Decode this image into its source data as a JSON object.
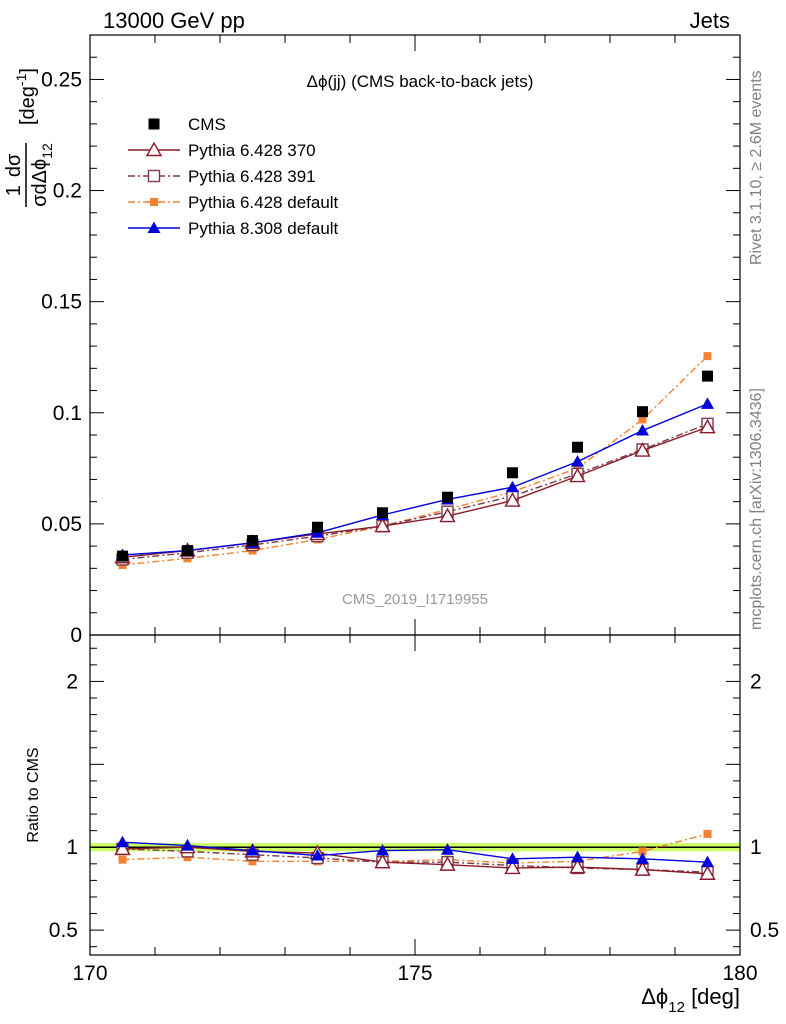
{
  "header": {
    "left": "13000 GeV pp",
    "right": "Jets"
  },
  "side_labels": {
    "rivet": "Rivet 3.1.10, ≥ 2.6M events",
    "mcplots": "mcplots.cern.ch [arXiv:1306.3436]"
  },
  "watermark": "CMS_2019_I1719955",
  "colors": {
    "cms": "#000000",
    "p370": "#8b1a2b",
    "p391": "#7a3a4a",
    "p6def": "#f58232",
    "p8def": "#0000dd",
    "band": "#ccff66"
  },
  "chart_data": [
    {
      "type": "scatter",
      "title": "Δϕ(jj) (CMS back-to-back jets)",
      "ylabel": "1/σ dσ/dΔϕ_12 [deg^-1]",
      "xlim": [
        170,
        180
      ],
      "ylim": [
        0,
        0.27
      ],
      "yticks": [
        "0",
        "0.05",
        "0.1",
        "0.15",
        "0.2",
        "0.25"
      ],
      "x": [
        170.5,
        171.5,
        172.5,
        173.5,
        174.5,
        175.5,
        176.5,
        177.5,
        178.5,
        179.5
      ],
      "series": [
        {
          "key": "cms",
          "name": "CMS",
          "marker": "square",
          "line": "none",
          "values": [
            0.0355,
            0.038,
            0.0425,
            0.0485,
            0.055,
            0.062,
            0.073,
            0.0845,
            0.1005,
            0.1165
          ]
        },
        {
          "key": "p370",
          "name": "Pythia 6.428 370",
          "marker": "triangle-open",
          "line": "solid",
          "values": [
            0.035,
            0.038,
            0.0415,
            0.0455,
            0.049,
            0.0535,
            0.0605,
            0.0715,
            0.083,
            0.0935
          ]
        },
        {
          "key": "p391",
          "name": "Pythia 6.428 391",
          "marker": "square-open",
          "line": "dashdot",
          "values": [
            0.034,
            0.037,
            0.0405,
            0.0445,
            0.049,
            0.0555,
            0.0625,
            0.0725,
            0.0835,
            0.095
          ]
        },
        {
          "key": "p6def",
          "name": "Pythia 6.428 default",
          "marker": "square-small",
          "line": "dashdot",
          "values": [
            0.0315,
            0.0345,
            0.038,
            0.043,
            0.049,
            0.0565,
            0.0645,
            0.075,
            0.097,
            0.1255
          ]
        },
        {
          "key": "p8def",
          "name": "Pythia 8.308 default",
          "marker": "triangle",
          "line": "solid",
          "values": [
            0.036,
            0.038,
            0.0415,
            0.046,
            0.054,
            0.061,
            0.0665,
            0.078,
            0.092,
            0.104
          ]
        }
      ]
    },
    {
      "type": "line",
      "ylabel": "Ratio to CMS",
      "xlabel": "Δϕ_12 [deg]",
      "xlim": [
        170,
        180
      ],
      "xticks": [
        "170",
        "175",
        "180"
      ],
      "ylim": [
        0.35,
        2.28
      ],
      "yticks": [
        "0.5",
        "1",
        "2"
      ],
      "band": [
        0.975,
        1.025
      ],
      "x": [
        170.5,
        171.5,
        172.5,
        173.5,
        174.5,
        175.5,
        176.5,
        177.5,
        178.5,
        179.5
      ],
      "series": [
        {
          "key": "p370",
          "values": [
            0.99,
            1.0,
            0.975,
            0.965,
            0.91,
            0.895,
            0.875,
            0.88,
            0.865,
            0.84
          ]
        },
        {
          "key": "p391",
          "values": [
            0.99,
            0.975,
            0.955,
            0.935,
            0.91,
            0.91,
            0.89,
            0.875,
            0.865,
            0.85
          ]
        },
        {
          "key": "p6def",
          "values": [
            0.925,
            0.94,
            0.915,
            0.915,
            0.915,
            0.925,
            0.905,
            0.915,
            0.975,
            1.08
          ]
        },
        {
          "key": "p8def",
          "values": [
            1.03,
            1.01,
            0.98,
            0.95,
            0.98,
            0.985,
            0.93,
            0.94,
            0.93,
            0.91
          ]
        }
      ]
    }
  ]
}
